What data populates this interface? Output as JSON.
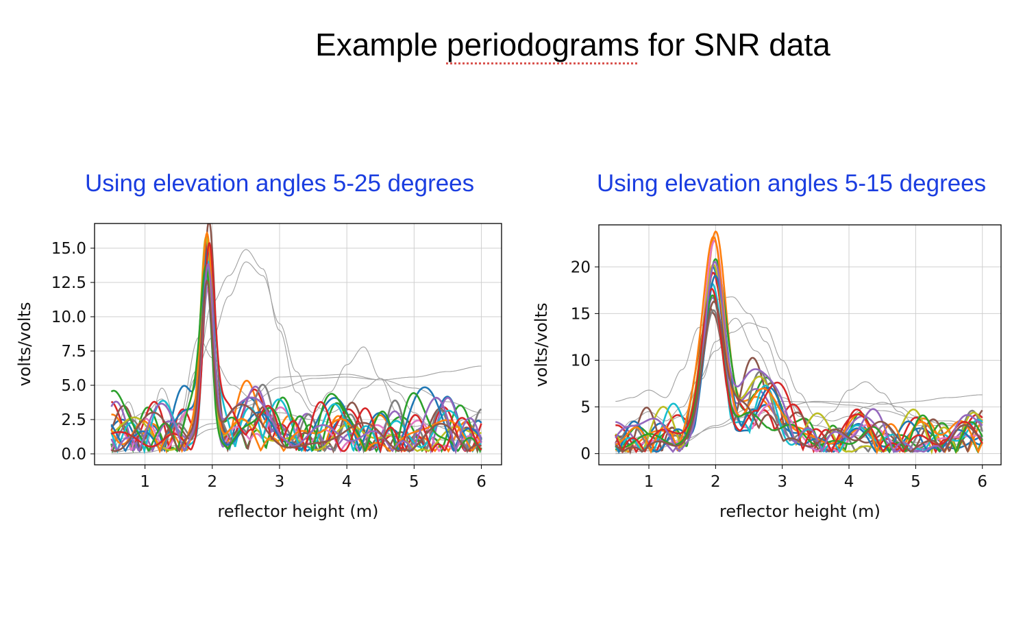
{
  "slide": {
    "title_pre": "Example ",
    "title_underlined": "periodograms",
    "title_post": " for SNR data"
  },
  "colors": {
    "panel_title": "#1a3de0",
    "palette": [
      "#1f77b4",
      "#ff7f0e",
      "#2ca02c",
      "#d62728",
      "#9467bd",
      "#8c564b",
      "#e377c2",
      "#7f7f7f",
      "#bcbd22",
      "#17becf"
    ],
    "gray_curves": "#a0a0a0"
  },
  "chart_data": [
    {
      "type": "line",
      "panel_title": "Using elevation angles 5-25 degrees",
      "xlabel": "reflector height (m)",
      "ylabel": "volts/volts",
      "xlim": [
        0.25,
        6.3
      ],
      "ylim": [
        -0.8,
        16.8
      ],
      "xticks": [
        1,
        2,
        3,
        4,
        5,
        6
      ],
      "xtick_labels": [
        "1",
        "2",
        "3",
        "4",
        "5",
        "6"
      ],
      "yticks": [
        0,
        2.5,
        5,
        7.5,
        10,
        12.5,
        15
      ],
      "ytick_labels": [
        "0.0",
        "2.5",
        "5.0",
        "7.5",
        "10.0",
        "12.5",
        "15.0"
      ],
      "grid": true,
      "x_range": [
        0.5,
        6.0
      ],
      "colored_peaks": [
        14.5,
        13.0,
        15.0,
        13.5,
        12.5,
        16.0,
        12.0,
        14.0,
        15.6,
        13.0,
        14.2,
        15.3,
        12.8,
        14.8,
        13.6,
        12.3
      ],
      "peak_x": 1.93,
      "gray_curves": [
        {
          "x": [
            0.5,
            0.75,
            1.0,
            1.25,
            1.5,
            1.75,
            2.0,
            2.25,
            2.5,
            2.75,
            3.0,
            3.25,
            3.5,
            3.75,
            4.0,
            4.25,
            4.5,
            4.75,
            5.0,
            5.25,
            5.5,
            5.75,
            6.0
          ],
          "y": [
            0.5,
            3.8,
            0.5,
            4.8,
            2.0,
            5.5,
            11.0,
            13.0,
            14.9,
            13.5,
            9.0,
            4.5,
            3.0,
            4.5,
            6.5,
            7.8,
            5.5,
            3.0,
            2.0,
            2.2,
            1.8,
            2.5,
            3.0
          ]
        },
        {
          "x": [
            0.5,
            0.75,
            1.0,
            1.25,
            1.5,
            1.75,
            2.0,
            2.25,
            2.5,
            2.75,
            3.0,
            3.25,
            3.5,
            3.75,
            4.0,
            4.25,
            4.5,
            4.75,
            5.0,
            5.25,
            5.5,
            5.75,
            6.0
          ],
          "y": [
            0.2,
            2.5,
            3.0,
            4.0,
            1.5,
            6.0,
            8.5,
            11.5,
            14.0,
            13.0,
            9.5,
            6.0,
            3.5,
            3.0,
            3.5,
            4.8,
            5.5,
            4.5,
            3.0,
            2.0,
            2.0,
            2.2,
            2.5
          ]
        },
        {
          "x": [
            0.5,
            1.0,
            1.5,
            2.0,
            2.5,
            3.0,
            3.5,
            4.0,
            4.5,
            5.0,
            5.5,
            6.0
          ],
          "y": [
            0.1,
            0.5,
            1.2,
            2.2,
            3.5,
            4.8,
            5.5,
            5.6,
            5.4,
            5.6,
            6.0,
            6.4
          ]
        },
        {
          "x": [
            0.5,
            1.0,
            1.5,
            2.0,
            2.5,
            3.0,
            3.5,
            4.0,
            4.5,
            5.0,
            5.5,
            6.0
          ],
          "y": [
            0.0,
            0.1,
            0.6,
            1.8,
            3.8,
            5.6,
            5.7,
            5.8,
            5.4,
            4.8,
            3.8,
            3.0
          ]
        },
        {
          "x": [
            0.5,
            1.0,
            1.5,
            1.8,
            2.0,
            2.3,
            2.6,
            3.0,
            3.5,
            4.0,
            4.5,
            5.0,
            5.5,
            6.0
          ],
          "y": [
            1.0,
            1.5,
            2.5,
            8.5,
            7.0,
            5.0,
            4.0,
            3.0,
            2.5,
            2.0,
            1.5,
            1.2,
            1.0,
            1.0
          ]
        }
      ]
    },
    {
      "type": "line",
      "panel_title": "Using elevation angles 5-15 degrees",
      "xlabel": "reflector height (m)",
      "ylabel": "volts/volts",
      "xlim": [
        0.25,
        6.28
      ],
      "ylim": [
        -1.2,
        24.5
      ],
      "xticks": [
        1,
        2,
        3,
        4,
        5,
        6
      ],
      "xtick_labels": [
        "1",
        "2",
        "3",
        "4",
        "5",
        "6"
      ],
      "yticks": [
        0,
        5,
        10,
        15,
        20
      ],
      "ytick_labels": [
        "0",
        "5",
        "10",
        "15",
        "20"
      ],
      "grid": true,
      "x_range": [
        0.5,
        6.0
      ],
      "colored_peaks": [
        18.5,
        23.3,
        19.8,
        19.0,
        16.0,
        15.0,
        21.8,
        14.2,
        19.5,
        17.5,
        18.0,
        22.0,
        16.5,
        17.0,
        20.0,
        15.5
      ],
      "peak_x": 1.97,
      "gray_curves": [
        {
          "x": [
            0.5,
            0.75,
            1.0,
            1.25,
            1.5,
            1.75,
            2.0,
            2.25,
            2.5,
            2.75,
            3.0,
            3.25,
            3.5,
            3.75,
            4.0,
            4.25,
            4.5,
            4.75,
            5.0,
            5.25,
            5.5,
            5.75,
            6.0
          ],
          "y": [
            5.6,
            6.0,
            6.8,
            6.0,
            9.0,
            13.5,
            16.5,
            16.8,
            15.0,
            12.0,
            8.0,
            4.0,
            3.0,
            4.5,
            6.8,
            7.7,
            6.5,
            4.5,
            3.0,
            3.0,
            3.2,
            3.0,
            2.5
          ]
        },
        {
          "x": [
            0.5,
            0.75,
            1.0,
            1.25,
            1.5,
            1.75,
            2.0,
            2.25,
            2.5,
            2.75,
            3.0,
            3.25,
            3.5,
            3.75,
            4.0,
            4.25,
            4.5,
            4.75,
            5.0,
            5.25,
            5.5,
            5.75,
            6.0
          ],
          "y": [
            2.0,
            3.5,
            4.5,
            3.5,
            5.0,
            8.0,
            11.0,
            13.0,
            14.0,
            13.5,
            10.0,
            6.5,
            4.0,
            3.5,
            4.0,
            5.0,
            5.5,
            5.0,
            4.0,
            3.5,
            3.5,
            3.2,
            3.0
          ]
        },
        {
          "x": [
            0.5,
            1.0,
            1.5,
            2.0,
            2.5,
            3.0,
            3.5,
            4.0,
            4.5,
            5.0,
            5.5,
            6.0
          ],
          "y": [
            0.2,
            0.5,
            1.5,
            2.8,
            4.0,
            5.0,
            5.6,
            5.5,
            5.3,
            5.6,
            6.0,
            6.3
          ]
        },
        {
          "x": [
            0.5,
            1.0,
            1.5,
            2.0,
            2.5,
            3.0,
            3.5,
            4.0,
            4.5,
            5.0,
            5.5,
            6.0
          ],
          "y": [
            0.0,
            0.3,
            1.2,
            3.0,
            4.8,
            5.6,
            5.5,
            5.2,
            4.6,
            3.8,
            3.0,
            2.6
          ]
        },
        {
          "x": [
            0.5,
            1.0,
            1.5,
            1.8,
            2.0,
            2.3,
            2.6,
            3.0,
            3.5,
            4.0,
            4.5,
            5.0,
            5.5,
            6.0
          ],
          "y": [
            1.0,
            2.0,
            4.0,
            8.0,
            12.0,
            14.5,
            11.0,
            6.0,
            3.0,
            2.0,
            1.5,
            1.2,
            1.0,
            1.0
          ]
        }
      ]
    }
  ]
}
